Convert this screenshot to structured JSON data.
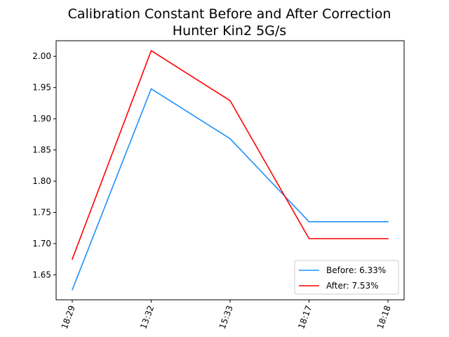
{
  "chart_data": {
    "type": "line",
    "title": "Calibration Constant Before and After Correction",
    "subtitle": "Hunter Kin2 5G/s",
    "xlabel": "",
    "ylabel": "",
    "categories": [
      "18:29",
      "13:32",
      "15:33",
      "18:17",
      "18:18"
    ],
    "ylim": [
      1.61,
      2.025
    ],
    "yticks": [
      "1.65",
      "1.70",
      "1.75",
      "1.80",
      "1.85",
      "1.90",
      "1.95",
      "2.00"
    ],
    "grid": false,
    "legend_position": "lower-right",
    "series": [
      {
        "name": "Before: 6.33%",
        "color": "#1e90ff",
        "values": [
          1.626,
          1.948,
          1.868,
          1.735,
          1.735
        ]
      },
      {
        "name": "After: 7.53%",
        "color": "#ff0000",
        "values": [
          1.675,
          2.009,
          1.929,
          1.708,
          1.708
        ]
      }
    ]
  }
}
